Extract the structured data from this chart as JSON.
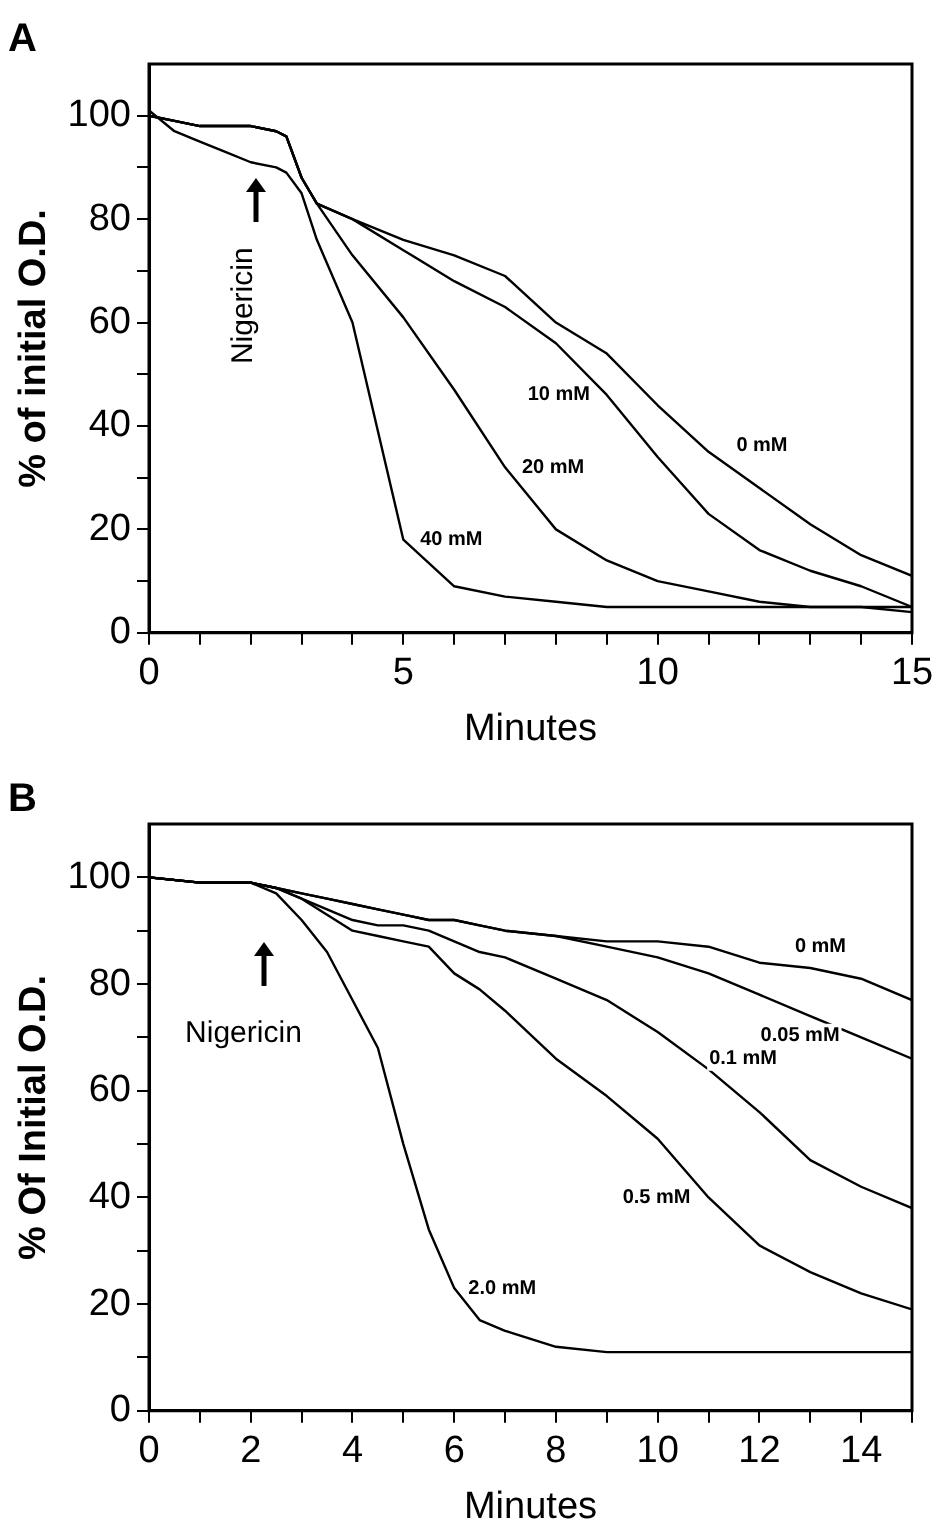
{
  "chart_data": [
    {
      "type": "line",
      "title": "A",
      "xlabel": "Minutes",
      "ylabel": "% of initial O.D.",
      "marker": "none",
      "grid": false,
      "legend": false,
      "x": [
        0,
        0.5,
        1,
        1.5,
        2,
        2.5,
        2.7,
        3,
        3.3,
        4,
        5,
        6,
        7,
        8,
        9,
        10,
        11,
        12,
        13,
        14,
        15
      ],
      "xlim": [
        0,
        15
      ],
      "ylim": [
        0,
        110
      ],
      "xticks": [
        0,
        {
          "value": 1,
          "label": null
        },
        {
          "value": 2,
          "label": null
        },
        {
          "value": 3,
          "label": null
        },
        {
          "value": 4,
          "label": null
        },
        5,
        {
          "value": 6,
          "label": null
        },
        {
          "value": 7,
          "label": null
        },
        {
          "value": 8,
          "label": null
        },
        {
          "value": 9,
          "label": null
        },
        10,
        {
          "value": 11,
          "label": null
        },
        {
          "value": 12,
          "label": null
        },
        {
          "value": 13,
          "label": null
        },
        {
          "value": 14,
          "label": null
        },
        15
      ],
      "yticks": [
        0,
        {
          "value": 10,
          "label": null
        },
        20,
        {
          "value": 30,
          "label": null
        },
        40,
        {
          "value": 50,
          "label": null
        },
        60,
        {
          "value": 70,
          "label": null
        },
        80,
        {
          "value": 90,
          "label": null
        },
        100
      ],
      "annotations": [
        "Nigericin"
      ],
      "series": [
        {
          "name": "0 mM",
          "color": "#000000",
          "values": [
            100,
            99,
            98,
            98,
            98,
            97,
            96,
            88,
            83,
            80,
            76,
            73,
            69,
            60,
            54,
            44,
            35,
            28,
            21,
            15,
            11
          ]
        },
        {
          "name": "10 mM",
          "color": "#000000",
          "values": [
            100,
            99,
            98,
            98,
            98,
            97,
            96,
            88,
            83,
            80,
            74,
            68,
            63,
            56,
            46,
            34,
            23,
            16,
            12,
            9,
            5
          ]
        },
        {
          "name": "20 mM",
          "color": "#000000",
          "values": [
            100,
            99,
            98,
            98,
            98,
            97,
            96,
            88,
            83,
            73,
            61,
            47,
            32,
            20,
            14,
            10,
            8,
            6,
            5,
            5,
            4
          ]
        },
        {
          "name": "40 mM",
          "color": "#000000",
          "values": [
            101,
            97,
            95,
            93,
            91,
            90,
            89,
            85,
            76,
            60,
            18,
            9,
            7,
            6,
            5,
            5,
            5,
            5,
            5,
            5,
            5
          ]
        }
      ]
    },
    {
      "type": "line",
      "title": "B",
      "xlabel": "Minutes",
      "ylabel": "% Of Initial O.D.",
      "marker": "none",
      "grid": false,
      "legend": false,
      "x": [
        0,
        1,
        2,
        2.5,
        3,
        3.5,
        4,
        4.5,
        5,
        5.5,
        6,
        6.5,
        7,
        8,
        9,
        10,
        11,
        12,
        13,
        14,
        15
      ],
      "xlim": [
        0,
        15
      ],
      "ylim": [
        0,
        110
      ],
      "xticks": [
        0,
        {
          "value": 1,
          "label": null
        },
        2,
        {
          "value": 3,
          "label": null
        },
        4,
        {
          "value": 5,
          "label": null
        },
        6,
        {
          "value": 7,
          "label": null
        },
        8,
        {
          "value": 9,
          "label": null
        },
        10,
        {
          "value": 11,
          "label": null
        },
        12,
        {
          "value": 13,
          "label": null
        },
        14,
        {
          "value": 15,
          "label": null
        }
      ],
      "yticks": [
        0,
        {
          "value": 10,
          "label": null
        },
        20,
        {
          "value": 30,
          "label": null
        },
        40,
        {
          "value": 50,
          "label": null
        },
        60,
        {
          "value": 70,
          "label": null
        },
        80,
        {
          "value": 90,
          "label": null
        },
        100
      ],
      "annotations": [
        "Nigericin"
      ],
      "series": [
        {
          "name": "0 mM",
          "color": "#000000",
          "values": [
            100,
            99,
            99,
            98,
            97,
            96,
            95,
            94,
            93,
            92,
            92,
            91,
            90,
            89,
            88,
            88,
            87,
            84,
            83,
            81,
            77
          ]
        },
        {
          "name": "0.05 mM",
          "color": "#000000",
          "values": [
            100,
            99,
            99,
            98,
            97,
            96,
            95,
            94,
            93,
            92,
            92,
            91,
            90,
            89,
            87,
            85,
            82,
            78,
            74,
            70,
            66
          ]
        },
        {
          "name": "0.1 mM",
          "color": "#000000",
          "values": [
            100,
            99,
            99,
            98,
            96,
            94,
            92,
            91,
            91,
            90,
            88,
            86,
            85,
            81,
            77,
            71,
            64,
            56,
            47,
            42,
            38
          ]
        },
        {
          "name": "0.5 mM",
          "color": "#000000",
          "values": [
            100,
            99,
            99,
            98,
            96,
            93,
            90,
            89,
            88,
            87,
            82,
            79,
            75,
            66,
            59,
            51,
            40,
            31,
            26,
            22,
            19
          ]
        },
        {
          "name": "2.0 mM",
          "color": "#000000",
          "values": [
            100,
            99,
            99,
            97,
            92,
            86,
            77,
            68,
            50,
            34,
            23,
            17,
            15,
            12,
            11,
            11,
            11,
            11,
            11,
            11,
            11
          ]
        }
      ]
    }
  ]
}
